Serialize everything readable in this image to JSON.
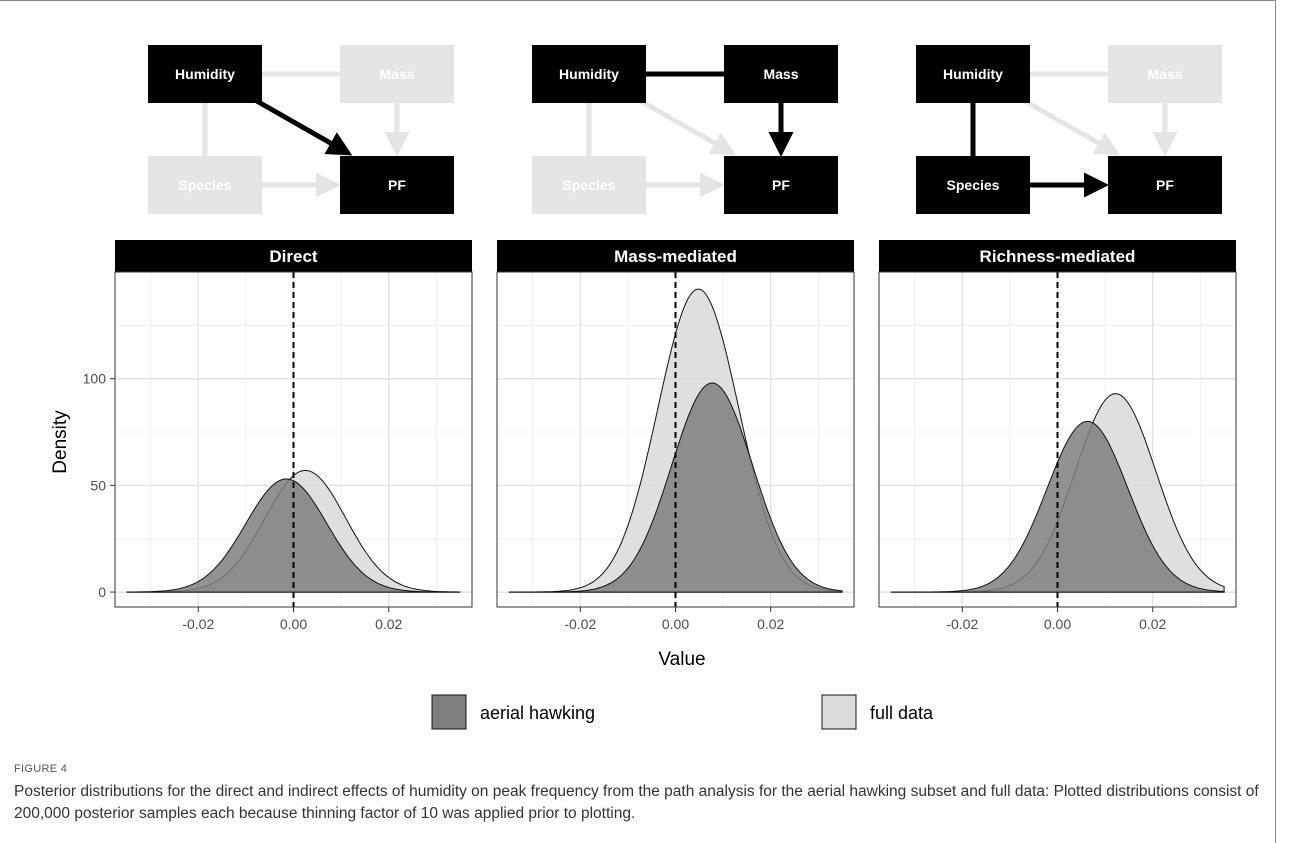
{
  "caption": {
    "label": "FIGURE 4",
    "text": "Posterior distributions for the direct and indirect effects of humidity on peak frequency from the path analysis for the aerial hawking subset and full data: Plotted distributions consist of 200,000 posterior samples each because thinning factor of 10 was applied prior to plotting."
  },
  "diagrams": [
    {
      "nodes": {
        "humidity": "Humidity",
        "mass": "Mass",
        "species": "Species",
        "pf": "PF"
      },
      "active_nodes": [
        "humidity",
        "pf"
      ],
      "active_edges": [
        "humidity-pf"
      ]
    },
    {
      "nodes": {
        "humidity": "Humidity",
        "mass": "Mass",
        "species": "Species",
        "pf": "PF"
      },
      "active_nodes": [
        "humidity",
        "mass",
        "pf"
      ],
      "active_edges": [
        "humidity-mass",
        "mass-pf"
      ]
    },
    {
      "nodes": {
        "humidity": "Humidity",
        "mass": "Mass",
        "species": "Species",
        "pf": "PF"
      },
      "active_nodes": [
        "humidity",
        "species",
        "pf"
      ],
      "active_edges": [
        "humidity-species",
        "species-pf"
      ]
    }
  ],
  "colors": {
    "aerial_hawking": "#7f7f7f",
    "full_data": "#dcdcdc",
    "inactive": "#e5e5e5",
    "active": "#000000"
  },
  "chart_data": {
    "type": "area",
    "ylabel": "Density",
    "xlabel": "Value",
    "xlim": [
      -0.0375,
      0.0375
    ],
    "ylim": [
      -7,
      150
    ],
    "x_ticks": [
      -0.02,
      0.0,
      0.02
    ],
    "x_tick_labels": [
      "-0.02",
      "0.00",
      "0.02"
    ],
    "y_ticks": [
      0,
      50,
      100
    ],
    "y_tick_labels": [
      "0",
      "50",
      "100"
    ],
    "grid": true,
    "reference_line_x": 0,
    "legend_position": "bottom",
    "panels": [
      {
        "title": "Direct",
        "series": [
          {
            "name": "aerial hawking",
            "mean": -0.0015,
            "peak_density": 53
          },
          {
            "name": "full data",
            "mean": 0.0025,
            "peak_density": 57
          }
        ]
      },
      {
        "title": "Mass-mediated",
        "series": [
          {
            "name": "aerial hawking",
            "mean": 0.0077,
            "peak_density": 98
          },
          {
            "name": "full data",
            "mean": 0.0048,
            "peak_density": 142
          }
        ]
      },
      {
        "title": "Richness-mediated",
        "series": [
          {
            "name": "aerial hawking",
            "mean": 0.0063,
            "peak_density": 80
          },
          {
            "name": "full data",
            "mean": 0.0122,
            "peak_density": 93
          }
        ]
      }
    ]
  }
}
